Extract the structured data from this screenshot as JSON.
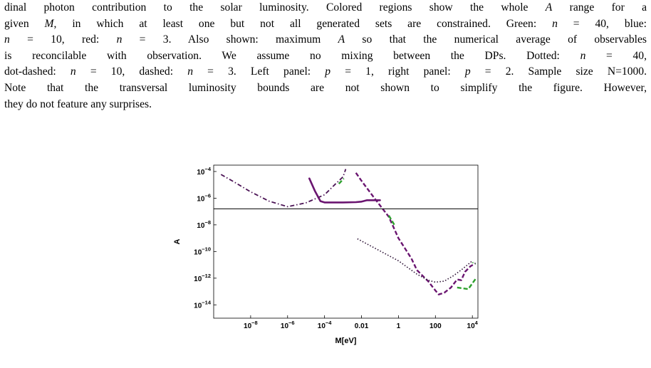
{
  "caption": {
    "line1": "dinal photon contribution to the solar luminosity. Colored regions show the whole A range for a",
    "line2": "given M, in which at least one but not all generated sets are constrained. Green: n = 40, blue:",
    "line3": "n = 10, red: n = 3. Also shown: maximum A so that the numerical average of observables",
    "line4": "is reconcilable with observation. We assume no mixing between the DPs. Dotted: n = 40,",
    "line5": "dot-dashed: n = 10, dashed: n = 3. Left panel: p = 1, right panel: p = 2. Sample size N=1000.",
    "line6": "Note that the transversal luminosity bounds are not shown to simplify the figure. However,",
    "line7": "they do not feature any surprises."
  },
  "chart_data": {
    "type": "line",
    "xlabel": "M[eV]",
    "ylabel": "A",
    "xscale": "log",
    "yscale": "log",
    "xlim": [
      1e-10,
      20000
    ],
    "ylim": [
      1e-15,
      0.0003
    ],
    "x_ticks": [
      {
        "value": 1e-08,
        "label": "10",
        "exp": "−8"
      },
      {
        "value": 1e-06,
        "label": "10",
        "exp": "−6"
      },
      {
        "value": 0.0001,
        "label": "10",
        "exp": "−4"
      },
      {
        "value": 0.01,
        "label": "0.01",
        "exp": ""
      },
      {
        "value": 1,
        "label": "1",
        "exp": ""
      },
      {
        "value": 100,
        "label": "100",
        "exp": ""
      },
      {
        "value": 10000,
        "label": "10",
        "exp": "4"
      }
    ],
    "y_ticks": [
      {
        "value": 0.0001,
        "label": "10",
        "exp": "−4"
      },
      {
        "value": 1e-06,
        "label": "10",
        "exp": "−6"
      },
      {
        "value": 1e-08,
        "label": "10",
        "exp": "−8"
      },
      {
        "value": 1e-10,
        "label": "10",
        "exp": "−10"
      },
      {
        "value": 1e-12,
        "label": "10",
        "exp": "−12"
      },
      {
        "value": 1e-14,
        "label": "10",
        "exp": "−14"
      }
    ],
    "hline": {
      "y": 1.6e-07,
      "color": "#000000"
    },
    "series": [
      {
        "style": "dotdash",
        "color": "#4b1355",
        "points": [
          [
            2.5e-10,
            6e-05
          ],
          [
            1e-09,
            2e-05
          ],
          [
            1e-08,
            3e-06
          ],
          [
            1e-07,
            6e-07
          ],
          [
            1e-06,
            2.3e-07
          ],
          [
            1e-05,
            4.5e-07
          ],
          [
            0.0001,
            1.8e-06
          ],
          [
            0.0004,
            1.2e-05
          ],
          [
            0.001,
            4e-05
          ],
          [
            0.0014,
            0.00015
          ]
        ]
      },
      {
        "style": "dashed",
        "color": "#2ca02c",
        "points": [
          [
            0.0006,
            1.2e-05
          ],
          [
            0.0011,
            3e-05
          ]
        ]
      },
      {
        "style": "solid",
        "color": "#6a1570",
        "points": [
          [
            1.5e-05,
            3e-05
          ],
          [
            3e-05,
            3.5e-06
          ],
          [
            6e-05,
            6e-07
          ],
          [
            0.0001,
            4.8e-07
          ],
          [
            0.001,
            4.8e-07
          ],
          [
            0.005,
            5e-07
          ],
          [
            0.01,
            5.5e-07
          ],
          [
            0.02,
            7e-07
          ],
          [
            0.1,
            7e-07
          ]
        ]
      },
      {
        "style": "dashed",
        "color": "#6a1570",
        "points": [
          [
            0.005,
            8e-05
          ],
          [
            0.01,
            2e-05
          ],
          [
            0.05,
            1e-06
          ],
          [
            0.3,
            4e-08
          ],
          [
            1,
            1e-09
          ],
          [
            5,
            3e-11
          ],
          [
            10,
            4e-12
          ],
          [
            40,
            6e-13
          ],
          [
            100,
            1.2e-13
          ],
          [
            150,
            6e-14
          ],
          [
            300,
            8e-14
          ],
          [
            700,
            2e-13
          ],
          [
            1500,
            8e-13
          ],
          [
            2500,
            7e-13
          ],
          [
            4000,
            3e-12
          ],
          [
            8000,
            8e-12
          ],
          [
            15000,
            1.3e-11
          ]
        ]
      },
      {
        "style": "dashed",
        "color": "#2ca02c",
        "points": [
          [
            0.3,
            5e-08
          ],
          [
            0.6,
            1e-08
          ]
        ]
      },
      {
        "style": "dashed",
        "color": "#2ca02c",
        "points": [
          [
            1500,
            2e-13
          ],
          [
            6000,
            1.5e-13
          ],
          [
            15000,
            9e-13
          ]
        ]
      },
      {
        "style": "dotted",
        "color": "#2a0f33",
        "points": [
          [
            0.006,
            9e-10
          ],
          [
            1,
            2e-11
          ],
          [
            10,
            2e-12
          ],
          [
            40,
            7e-13
          ],
          [
            100,
            5e-13
          ],
          [
            300,
            6e-13
          ],
          [
            1000,
            1.6e-12
          ],
          [
            3000,
            5e-12
          ],
          [
            10000,
            2e-11
          ]
        ]
      },
      {
        "style": "dotted",
        "color": "#2ca02c",
        "points": [
          [
            10000,
            1.5e-11
          ],
          [
            15000,
            1.2e-11
          ]
        ]
      }
    ]
  }
}
